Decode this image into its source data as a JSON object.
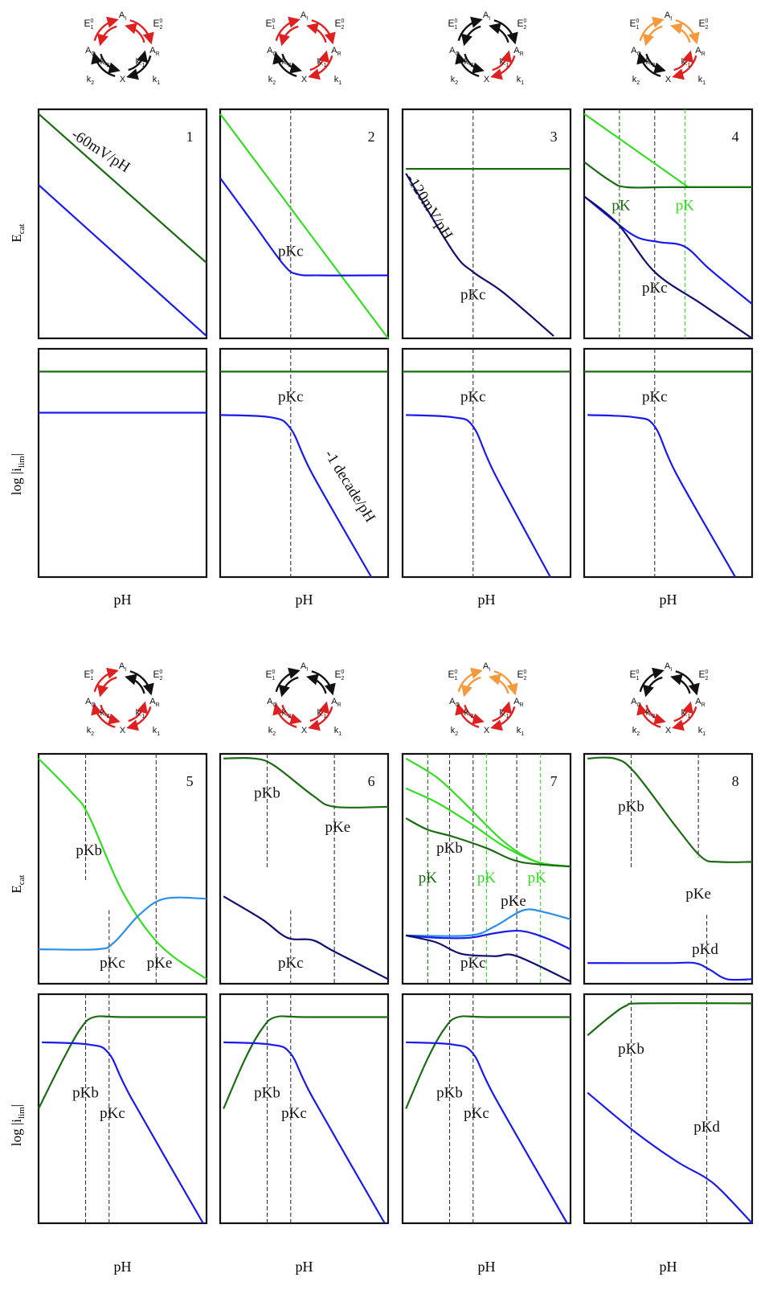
{
  "colors": {
    "dark_green": "#1a6b12",
    "light_green": "#33dd22",
    "blue": "#1a1aee",
    "navy": "#101070",
    "light_blue": "#2a8fe8",
    "red": "#e02020",
    "orange": "#f59a3c",
    "black": "#111111"
  },
  "labels": {
    "xlabel": "pH",
    "ylabel_top_main": "E",
    "ylabel_top_sub": "cat",
    "ylabel_bottom_main": "log |i",
    "ylabel_bottom_sub": "lim",
    "ylabel_bottom_end": "|"
  },
  "cycle_labels": {
    "E1": "E",
    "E1_sub": "1",
    "E1_sup": "0",
    "E2": "E",
    "E2_sub": "2",
    "E2_sup": "0",
    "AI": "A",
    "AI_sub": "I",
    "AO": "A",
    "AO_sub": "O",
    "AR": "A",
    "AR_sub": "R",
    "km2": "k",
    "km2_sub": "-2",
    "km1": "k",
    "km1_sub": "-1",
    "k2": "k",
    "k2_sub": "2",
    "k1": "k",
    "k1_sub": "1",
    "X": "X"
  },
  "panels": [
    {
      "number": "1",
      "cycle": [
        "red",
        "red",
        "black",
        "black"
      ],
      "top_annotations": [
        "-60mV/pH"
      ],
      "bottom_annotations": []
    },
    {
      "number": "2",
      "cycle": [
        "red",
        "red",
        "black",
        "red"
      ],
      "top_annotations": [
        "pKc"
      ],
      "bottom_annotations": [
        "pKc",
        "-1 decade/pH"
      ]
    },
    {
      "number": "3",
      "cycle": [
        "black",
        "black",
        "black",
        "red"
      ],
      "top_annotations": [
        "-120mV/pH",
        "pKc"
      ],
      "bottom_annotations": [
        "pKc"
      ]
    },
    {
      "number": "4",
      "cycle": [
        "orange",
        "orange",
        "black",
        "red"
      ],
      "top_annotations": [
        "pK",
        "pK",
        "pKc"
      ],
      "bottom_annotations": [
        "pKc"
      ]
    },
    {
      "number": "5",
      "cycle": [
        "red",
        "black",
        "red",
        "red"
      ],
      "top_annotations": [
        "pKb",
        "pKc",
        "pKe"
      ],
      "bottom_annotations": [
        "pKb",
        "pKc"
      ]
    },
    {
      "number": "6",
      "cycle": [
        "black",
        "black",
        "red",
        "red"
      ],
      "top_annotations": [
        "pKb",
        "pKe",
        "pKc"
      ],
      "bottom_annotations": [
        "pKb",
        "pKc"
      ]
    },
    {
      "number": "7",
      "cycle": [
        "orange",
        "orange",
        "red",
        "red"
      ],
      "top_annotations": [
        "pKb",
        "pK",
        "pK",
        "pK",
        "pKe",
        "pKc"
      ],
      "bottom_annotations": [
        "pKb",
        "pKc"
      ]
    },
    {
      "number": "8",
      "cycle": [
        "black",
        "black",
        "red",
        "red"
      ],
      "top_annotations": [
        "pKb",
        "pKe",
        "pKd"
      ],
      "bottom_annotations": [
        "pKb",
        "pKd"
      ]
    }
  ]
}
